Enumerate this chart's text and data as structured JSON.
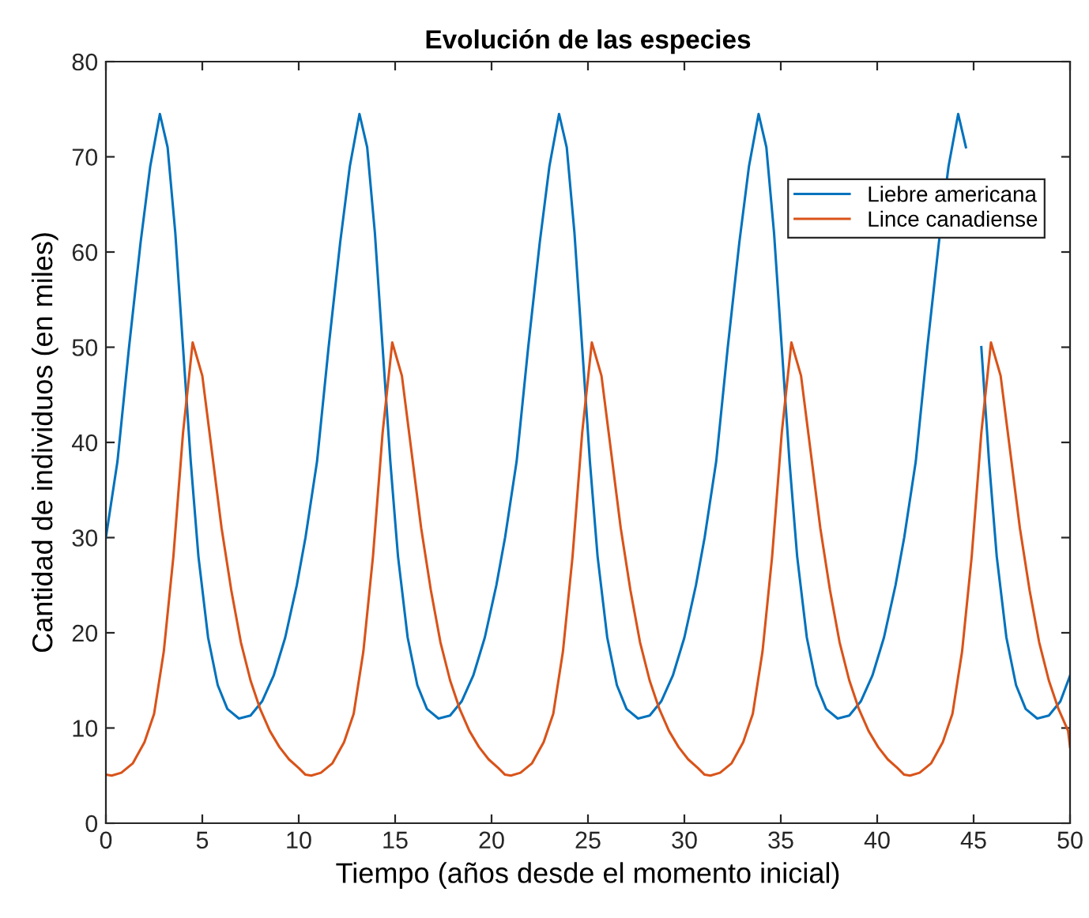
{
  "chart_data": {
    "type": "line",
    "title": "Evolución de las especies",
    "xlabel": "Tiempo (años desde el momento inicial)",
    "ylabel": "Cantidad de individuos (en miles)",
    "xlim": [
      0,
      50
    ],
    "ylim": [
      0,
      80
    ],
    "xticks": [
      0,
      5,
      10,
      15,
      20,
      25,
      30,
      35,
      40,
      45,
      50
    ],
    "yticks": [
      0,
      10,
      20,
      30,
      40,
      50,
      60,
      70,
      80
    ],
    "grid": false,
    "legend": "top right",
    "marker": "none",
    "line_style": "solid",
    "series": [
      {
        "name": "Liebre americana",
        "color": "#0072bd",
        "x": [
          0,
          0.6,
          1.2,
          1.8,
          2.3,
          2.8,
          3.2,
          3.6,
          4,
          4.4,
          4.8,
          5.3,
          5.8,
          6.3,
          6.9,
          7.5,
          8.1,
          8.7,
          9.3,
          9.9,
          10.35,
          10.95,
          11.55,
          12.15,
          12.65,
          13.15,
          13.55,
          13.95,
          14.35,
          14.75,
          15.15,
          15.65,
          16.15,
          16.65,
          17.25,
          17.85,
          18.45,
          19.05,
          19.65,
          20.25,
          20.7,
          21.3,
          21.9,
          22.5,
          23,
          23.5,
          23.9,
          24.3,
          24.7,
          25.1,
          25.5,
          26,
          26.5,
          27,
          27.6,
          28.2,
          28.8,
          29.4,
          30,
          30.6,
          31.05,
          31.65,
          32.25,
          32.85,
          33.35,
          33.85,
          34.25,
          34.65,
          35.05,
          35.45,
          35.85,
          36.35,
          36.85,
          37.35,
          37.95,
          38.55,
          39.15,
          39.75,
          40.35,
          40.95,
          41.4,
          42,
          42.6,
          43.2,
          43.7,
          44.2,
          44.6,
          45,
          45.4,
          45.8,
          46.2,
          46.7,
          47.2,
          47.7,
          48.3,
          48.9,
          49.5,
          50
        ],
        "values": [
          30,
          38,
          50,
          61,
          69,
          74.5,
          71,
          62,
          50,
          38,
          28,
          19.5,
          14.5,
          12,
          11,
          11.3,
          12.8,
          15.5,
          19.5,
          25,
          30,
          38,
          50,
          61,
          69,
          74.5,
          71,
          62,
          50,
          38,
          28,
          19.5,
          14.5,
          12,
          11,
          11.3,
          12.8,
          15.5,
          19.5,
          25,
          30,
          38,
          50,
          61,
          69,
          74.5,
          71,
          62,
          50,
          38,
          28,
          19.5,
          14.5,
          12,
          11,
          11.3,
          12.8,
          15.5,
          19.5,
          25,
          30,
          38,
          50,
          61,
          69,
          74.5,
          71,
          62,
          50,
          38,
          28,
          19.5,
          14.5,
          12,
          11,
          11.3,
          12.8,
          15.5,
          19.5,
          25,
          30,
          38,
          50,
          61,
          69,
          74.5,
          71,
          null,
          50,
          38,
          28,
          19.5,
          14.5,
          12,
          11,
          11.3,
          12.8,
          15.5
        ]
      },
      {
        "name": "Lince canadiense",
        "color": "#d95319",
        "x": [
          0,
          0.3,
          0.8,
          1.4,
          2,
          2.5,
          3,
          3.5,
          4,
          4.5,
          5,
          5.5,
          6,
          6.5,
          7,
          7.5,
          8,
          8.5,
          9,
          9.5,
          10,
          10.35,
          10.65,
          11.15,
          11.75,
          12.35,
          12.85,
          13.35,
          13.85,
          14.35,
          14.85,
          15.35,
          15.85,
          16.35,
          16.85,
          17.35,
          17.85,
          18.35,
          18.85,
          19.35,
          19.85,
          20.35,
          20.7,
          21,
          21.5,
          22.1,
          22.7,
          23.2,
          23.7,
          24.2,
          24.7,
          25.2,
          25.7,
          26.2,
          26.7,
          27.2,
          27.7,
          28.2,
          28.7,
          29.2,
          29.7,
          30.2,
          30.7,
          31.05,
          31.35,
          31.85,
          32.45,
          33.05,
          33.55,
          34.05,
          34.55,
          35.05,
          35.55,
          36.05,
          36.55,
          37.05,
          37.55,
          38.05,
          38.55,
          39.05,
          39.55,
          40.05,
          40.55,
          41.05,
          41.4,
          41.7,
          42.2,
          42.8,
          43.4,
          43.9,
          44.4,
          44.9,
          45.4,
          45.9,
          46.4,
          46.9,
          47.4,
          47.9,
          48.4,
          48.9,
          49.4,
          49.9,
          50
        ],
        "values": [
          5.1,
          5,
          5.3,
          6.3,
          8.5,
          11.5,
          18,
          28,
          41,
          50.5,
          47,
          39,
          31,
          24.5,
          19,
          15,
          12,
          9.7,
          8,
          6.7,
          5.8,
          5.1,
          5,
          5.3,
          6.3,
          8.5,
          11.5,
          18,
          28,
          41,
          50.5,
          47,
          39,
          31,
          24.5,
          19,
          15,
          12,
          9.7,
          8,
          6.7,
          5.8,
          5.1,
          5,
          5.3,
          6.3,
          8.5,
          11.5,
          18,
          28,
          41,
          50.5,
          47,
          39,
          31,
          24.5,
          19,
          15,
          12,
          9.7,
          8,
          6.7,
          5.8,
          5.1,
          5,
          5.3,
          6.3,
          8.5,
          11.5,
          18,
          28,
          41,
          50.5,
          47,
          39,
          31,
          24.5,
          19,
          15,
          12,
          9.7,
          8,
          6.7,
          5.8,
          5.1,
          5,
          5.3,
          6.3,
          8.5,
          11.5,
          18,
          28,
          41,
          50.5,
          47,
          39,
          31,
          24.5,
          19,
          15,
          12,
          9.7,
          8
        ]
      }
    ]
  }
}
